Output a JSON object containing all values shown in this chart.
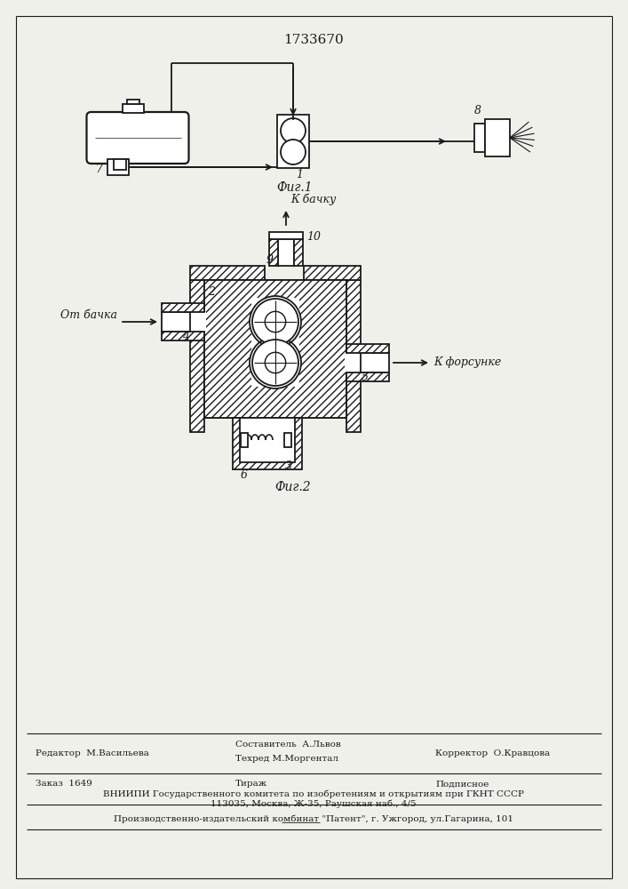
{
  "title": "1733670",
  "fig1_label": "Фиг.1",
  "fig2_label": "Фиг.2",
  "label_7": "7",
  "label_1": "1",
  "label_8": "8",
  "label_2": "2",
  "label_3": "3",
  "label_4": "4",
  "label_5": "5",
  "label_6": "6",
  "label_9": "9",
  "label_10": "10",
  "text_k_bachku": "К бачку",
  "text_ot_bachka": "От бачка",
  "text_k_forsunke": "К форсунке",
  "footer_line1_left": "Редактор  М.Васильева",
  "footer_line1_mid1": "Составитель  А.Львов",
  "footer_line1_mid2": "Техред М.Моргентал",
  "footer_line1_right": "Корректор  О.Кравцова",
  "footer_line2_left": "Заказ  1649",
  "footer_line2_mid": "Тираж",
  "footer_line2_right": "Подписное",
  "footer_line3": "ВНИИПИ Государственного комитета по изобретениям и открытиям при ГКНТ СССР",
  "footer_line4": "113035, Москва, Ж-35, Раушская наб., 4/5",
  "footer_line5": "Производственно-издательский комбинат \"Патент\", г. Ужгород, ул.Гагарина, 101",
  "bg_color": "#f0f0eb",
  "line_color": "#1a1a1a"
}
